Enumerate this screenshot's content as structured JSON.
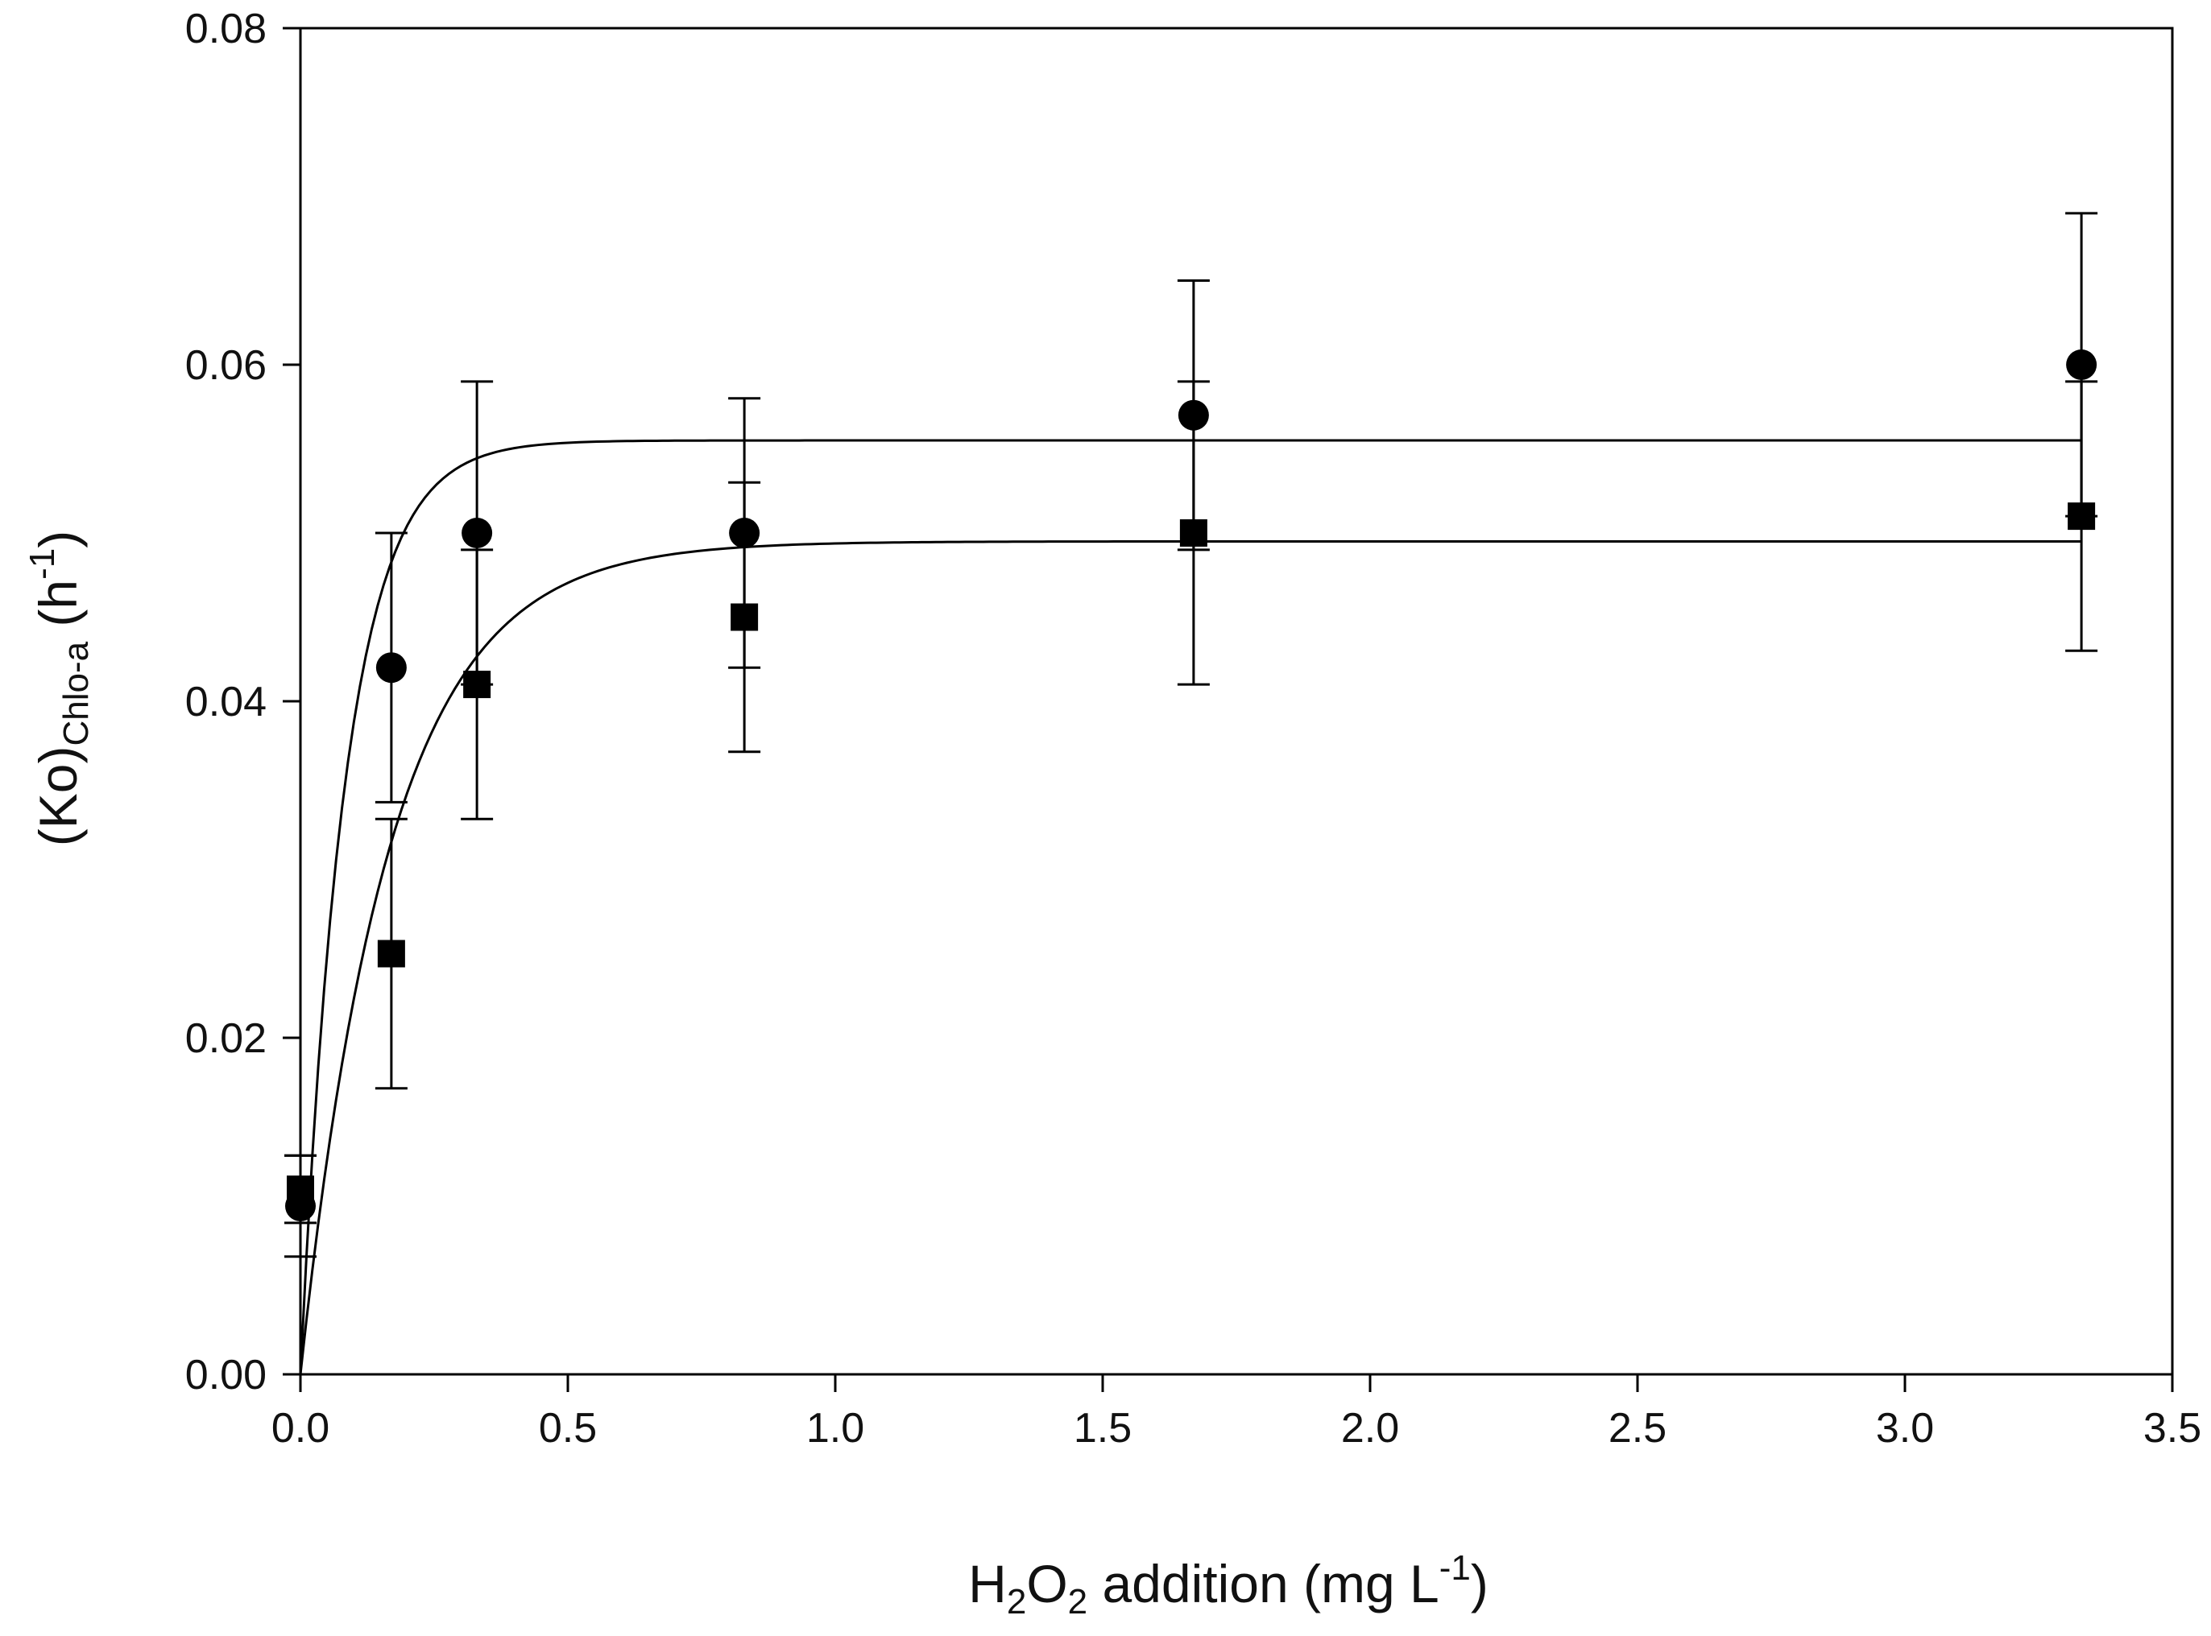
{
  "chart_data": {
    "type": "scatter",
    "xlabel": {
      "prefix": "H",
      "sub1": "2",
      "mid": "O",
      "sub2": "2",
      "rest": " addition (mg  L",
      "sup": "-1",
      "close": ")"
    },
    "ylabel": {
      "prefix": "(Ko)",
      "sub": "Chlo-a",
      "rest": " (h",
      "sup": "-1",
      "close": ")"
    },
    "xlim": [
      0,
      3.5
    ],
    "ylim": [
      0,
      0.08
    ],
    "x_ticks": [
      0,
      0.5,
      1.0,
      1.5,
      2.0,
      2.5,
      3.0,
      3.5
    ],
    "x_tick_labels": [
      "0.0",
      "0.5",
      "1.0",
      "1.5",
      "2.0",
      "2.5",
      "3.0",
      "3.5"
    ],
    "y_ticks": [
      0,
      0.02,
      0.04,
      0.06,
      0.08
    ],
    "y_tick_labels": [
      "0.00",
      "0.02",
      "0.04",
      "0.06",
      "0.08"
    ],
    "grid": false,
    "series": [
      {
        "name": "circles",
        "marker": "circle",
        "x": [
          0,
          0.17,
          0.33,
          0.83,
          1.67,
          3.33
        ],
        "y": [
          0.01,
          0.042,
          0.05,
          0.05,
          0.057,
          0.06
        ],
        "err": [
          0.003,
          0.008,
          0.009,
          0.008,
          0.008,
          0.009
        ],
        "fit": {
          "model": "exponential-rise",
          "a": 0.0555,
          "k": 12
        }
      },
      {
        "name": "squares",
        "marker": "square",
        "x": [
          0,
          0.17,
          0.33,
          0.83,
          1.67,
          3.33
        ],
        "y": [
          0.011,
          0.025,
          0.041,
          0.045,
          0.05,
          0.051
        ],
        "err": [
          0.002,
          0.008,
          0.008,
          0.008,
          0.009,
          0.008
        ],
        "fit": {
          "model": "exponential-rise",
          "a": 0.0495,
          "k": 6
        }
      }
    ],
    "colors": {
      "ink": "#000000",
      "background": "#ffffff"
    }
  }
}
